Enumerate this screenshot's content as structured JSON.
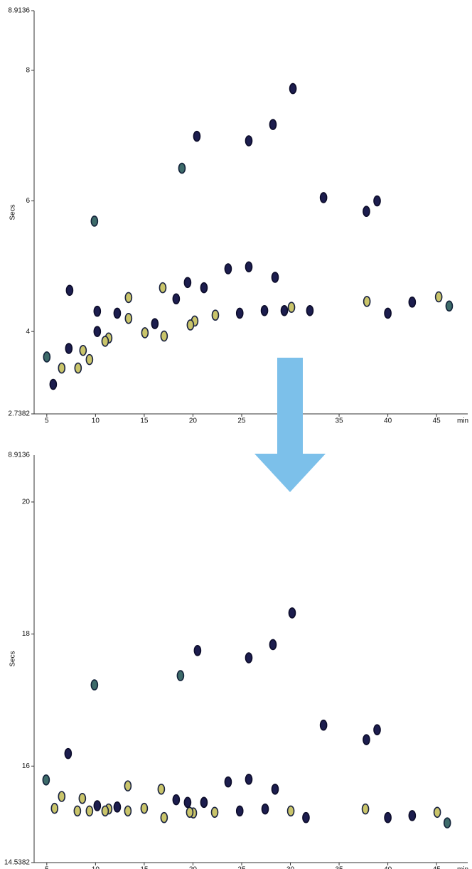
{
  "chart_data": [
    {
      "type": "scatter",
      "y_label": "Secs",
      "x_unit": "min",
      "xlim": [
        3.7,
        48.2
      ],
      "ylim": [
        2.7382,
        8.9136
      ],
      "xticks": [
        5,
        10,
        15,
        20,
        25,
        30,
        35,
        40,
        45
      ],
      "yticks": [
        2.7382,
        4,
        6,
        8,
        8.9136
      ],
      "series": [
        {
          "color": "#1c1d4e",
          "stroke": "#0c0c2a",
          "x": [
            20.4,
            25.73,
            28.21,
            30.26,
            10.18,
            7.26,
            5.66,
            12.23,
            10.18,
            16.09,
            21.13,
            23.61,
            25.73,
            28.43,
            27.34,
            29.38,
            32.0,
            7.34,
            33.4,
            38.9,
            37.8,
            40.0,
            42.5,
            18.28,
            19.45,
            24.8
          ],
          "values": [
            6.99,
            6.92,
            7.17,
            7.72,
            4.31,
            3.74,
            3.19,
            4.28,
            4.0,
            4.12,
            4.67,
            4.96,
            4.99,
            4.83,
            4.32,
            4.32,
            4.32,
            4.63,
            6.05,
            6.0,
            5.84,
            4.28,
            4.45,
            4.5,
            4.75,
            4.28
          ]
        },
        {
          "color": "#3d6b6a",
          "stroke": "#13233a",
          "x": [
            9.89,
            18.87,
            46.3,
            5.0
          ],
          "values": [
            5.69,
            6.5,
            4.39,
            3.61
          ]
        },
        {
          "color": "#c9c46a",
          "stroke": "#1a2340",
          "x": [
            6.53,
            8.21,
            8.72,
            9.38,
            10.99,
            11.35,
            13.39,
            13.39,
            15.07,
            16.9,
            17.04,
            19.74,
            20.18,
            22.3,
            30.11,
            37.85,
            45.22
          ],
          "values": [
            3.44,
            3.44,
            3.71,
            3.57,
            3.85,
            3.9,
            4.2,
            4.52,
            3.98,
            4.67,
            3.93,
            4.1,
            4.16,
            4.25,
            4.37,
            4.46,
            4.53
          ]
        }
      ]
    },
    {
      "type": "scatter",
      "y_label": "Secs",
      "x_unit": "min",
      "top_label": "8.9136",
      "xlim": [
        3.7,
        48.2
      ],
      "ylim": [
        14.5382,
        20.71
      ],
      "xticks": [
        5,
        10,
        15,
        20,
        25,
        30,
        35,
        40,
        45
      ],
      "yticks": [
        14.5382,
        16,
        18,
        20
      ],
      "series": [
        {
          "color": "#1c1d4e",
          "stroke": "#0c0c2a",
          "x": [
            20.47,
            25.73,
            28.21,
            30.18,
            7.19,
            33.4,
            38.9,
            37.8,
            27.41,
            31.6,
            40.0,
            42.5,
            18.28,
            19.45,
            21.13,
            23.61,
            25.73,
            28.43,
            24.8,
            10.18,
            12.23
          ],
          "values": [
            17.75,
            17.64,
            17.84,
            18.32,
            16.19,
            16.62,
            16.55,
            16.4,
            15.35,
            15.22,
            15.22,
            15.25,
            15.49,
            15.45,
            15.45,
            15.76,
            15.8,
            15.65,
            15.32,
            15.4,
            15.38
          ]
        },
        {
          "color": "#3d6b6a",
          "stroke": "#13233a",
          "x": [
            9.89,
            18.72,
            46.1,
            4.93
          ],
          "values": [
            17.23,
            17.37,
            15.14,
            15.79
          ]
        },
        {
          "color": "#c9c46a",
          "stroke": "#1a2340",
          "x": [
            5.8,
            6.53,
            8.14,
            8.65,
            9.38,
            10.99,
            11.35,
            13.32,
            13.32,
            15.0,
            16.75,
            17.04,
            19.67,
            20.04,
            22.23,
            30.04,
            37.7,
            45.07
          ],
          "values": [
            15.36,
            15.54,
            15.32,
            15.51,
            15.32,
            15.32,
            15.35,
            15.7,
            15.32,
            15.36,
            15.65,
            15.22,
            15.3,
            15.29,
            15.3,
            15.32,
            15.35,
            15.3
          ]
        }
      ]
    }
  ]
}
